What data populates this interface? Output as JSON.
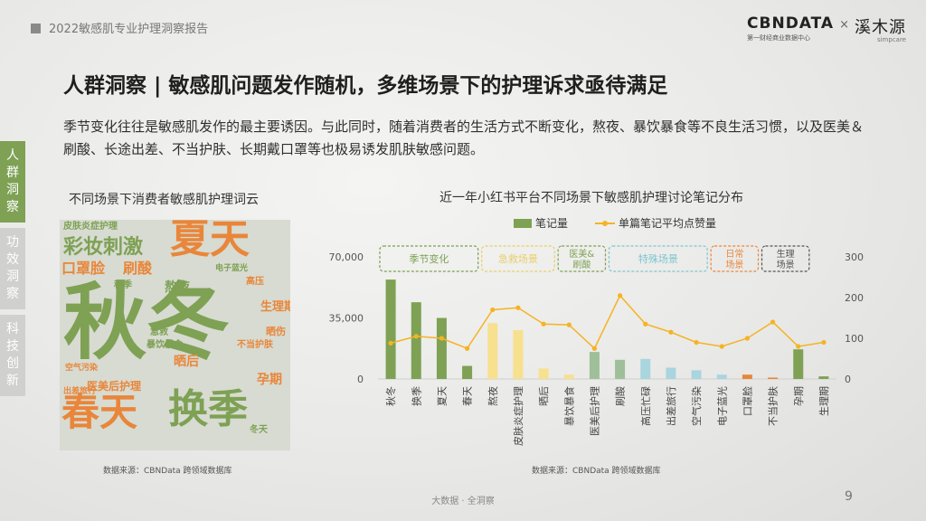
{
  "header": {
    "report_title": "2022敏感肌专业护理洞察报告",
    "logo_cbn": "CBNDATA",
    "logo_cbn_sub": "第一财经商业数据中心",
    "logo_sep": "×",
    "logo_partner": "溪木源",
    "logo_partner_sub": "simpcare"
  },
  "headline": "人群洞察 | 敏感肌问题发作随机，多维场景下的护理诉求亟待满足",
  "paragraph": "季节变化往往是敏感肌发作的最主要诱因。与此同时，随着消费者的生活方式不断变化，熬夜、暴饮暴食等不良生活习惯，以及医美＆刷酸、长途出差、不当护肤、长期戴口罩等也极易诱发肌肤敏感问题。",
  "side_nav": [
    {
      "label": "人群洞察",
      "active": true
    },
    {
      "label": "功效洞察",
      "active": false
    },
    {
      "label": "科技创新",
      "active": false
    }
  ],
  "wordcloud": {
    "title": "不同场景下消费者敏感肌护理词云",
    "source": "数据来源：CBNData 跨领域数据库",
    "words": [
      "秋冬",
      "夏天",
      "换季",
      "春天",
      "彩妆刺激",
      "口罩脸",
      "刷酸",
      "皮肤炎症护理",
      "熬夜",
      "晒后",
      "医美后护理",
      "孕期",
      "生理期",
      "出差旅行",
      "电子蓝光",
      "空气污染",
      "不当护肤",
      "暴饮暴食",
      "高压",
      "秋季",
      "急救",
      "晒伤",
      "冬天"
    ]
  },
  "chart": {
    "title": "近一年小红书平台不同场景下敏感肌护理讨论笔记分布",
    "legend_bar": "笔记量",
    "legend_line": "单篇笔记平均点赞量",
    "source": "数据来源：CBNData 跨领域数据库",
    "groups": [
      {
        "label": "季节变化",
        "from": 0,
        "to": 3,
        "color": "#7ea154"
      },
      {
        "label": "急救场景",
        "from": 4,
        "to": 6,
        "color": "#e9cf6a"
      },
      {
        "label": "医美&刷酸",
        "from": 7,
        "to": 8,
        "color": "#7ea154"
      },
      {
        "label": "特殊场景",
        "from": 9,
        "to": 12,
        "color": "#7fc6cf"
      },
      {
        "label": "日常场景",
        "from": 13,
        "to": 14,
        "color": "#e9863a"
      },
      {
        "label": "生理场景",
        "from": 15,
        "to": 16,
        "color": "#555555"
      }
    ]
  },
  "chart_data": {
    "type": "bar",
    "title": "近一年小红书平台不同场景下敏感肌护理讨论笔记分布",
    "categories": [
      "秋冬",
      "换季",
      "夏天",
      "春天",
      "熬夜",
      "皮肤炎症护理",
      "晒后",
      "暴饮暴食",
      "医美后护理",
      "刷酸",
      "高压忙碌",
      "出差旅行",
      "空气污染",
      "电子蓝光",
      "口罩脸",
      "不当护肤",
      "孕期",
      "生理期"
    ],
    "series": [
      {
        "name": "笔记量",
        "axis": "left",
        "type": "bar",
        "values": [
          57000,
          44000,
          35000,
          7500,
          32000,
          28000,
          6000,
          2500,
          15500,
          11000,
          11500,
          6500,
          5000,
          2500,
          2500,
          800,
          17000,
          1500
        ],
        "colors": [
          "#7ea154",
          "#7ea154",
          "#7ea154",
          "#7ea154",
          "#f7e08e",
          "#f7e08e",
          "#f7e08e",
          "#f7e08e",
          "#9ebf99",
          "#9ebf99",
          "#a9d5df",
          "#a9d5df",
          "#a9d5df",
          "#a9d5df",
          "#e9863a",
          "#e9863a",
          "#7ea154",
          "#7ea154"
        ]
      },
      {
        "name": "单篇笔记平均点赞量",
        "axis": "right",
        "type": "line",
        "color": "#f5b324",
        "values": [
          88,
          105,
          100,
          75,
          170,
          175,
          135,
          133,
          75,
          205,
          135,
          115,
          90,
          80,
          100,
          140,
          80,
          90
        ]
      }
    ],
    "ylim_left": [
      0,
      70000
    ],
    "yticks_left": [
      "0",
      "35,000",
      "70,000"
    ],
    "ylim_right": [
      0,
      300
    ],
    "yticks_right": [
      "0",
      "100",
      "200",
      "300"
    ],
    "grid": false,
    "legend": "top-center"
  },
  "footer": {
    "center": "大数据 · 全洞察",
    "page": "9"
  }
}
